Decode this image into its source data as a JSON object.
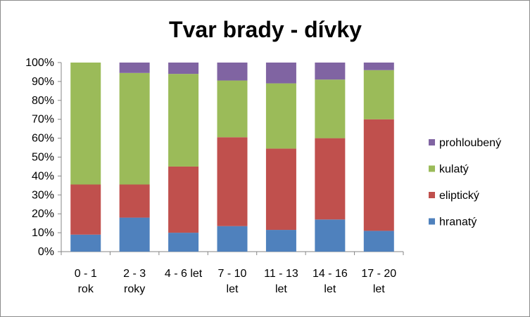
{
  "chart_data": {
    "type": "bar",
    "stacked": "percent",
    "title": "Tvar brady - dívky",
    "categories": [
      [
        "0 - 1",
        "rok"
      ],
      [
        "2 - 3",
        "roky"
      ],
      [
        "4 - 6 let"
      ],
      [
        "7 - 10",
        "let"
      ],
      [
        "11 - 13",
        "let"
      ],
      [
        "14 - 16",
        "let"
      ],
      [
        "17 - 20",
        "let"
      ]
    ],
    "series": [
      {
        "name": "hranatý",
        "color": "#4f81bd",
        "values": [
          9,
          18,
          10,
          13.5,
          11.5,
          17,
          11
        ]
      },
      {
        "name": "eliptický",
        "color": "#c0504d",
        "values": [
          26.5,
          17.5,
          35,
          47,
          43,
          43,
          59
        ]
      },
      {
        "name": "kulatý",
        "color": "#9bbb59",
        "values": [
          64.5,
          59,
          49,
          30,
          34.5,
          31,
          26
        ]
      },
      {
        "name": "prohloubený",
        "color": "#8064a2",
        "values": [
          0,
          5.5,
          6,
          9.5,
          11,
          9,
          4
        ]
      }
    ],
    "y_ticks": [
      "0%",
      "10%",
      "20%",
      "30%",
      "40%",
      "50%",
      "60%",
      "70%",
      "80%",
      "90%",
      "100%"
    ],
    "ylim": [
      0,
      100
    ],
    "legend_position": "right",
    "grid": false
  }
}
